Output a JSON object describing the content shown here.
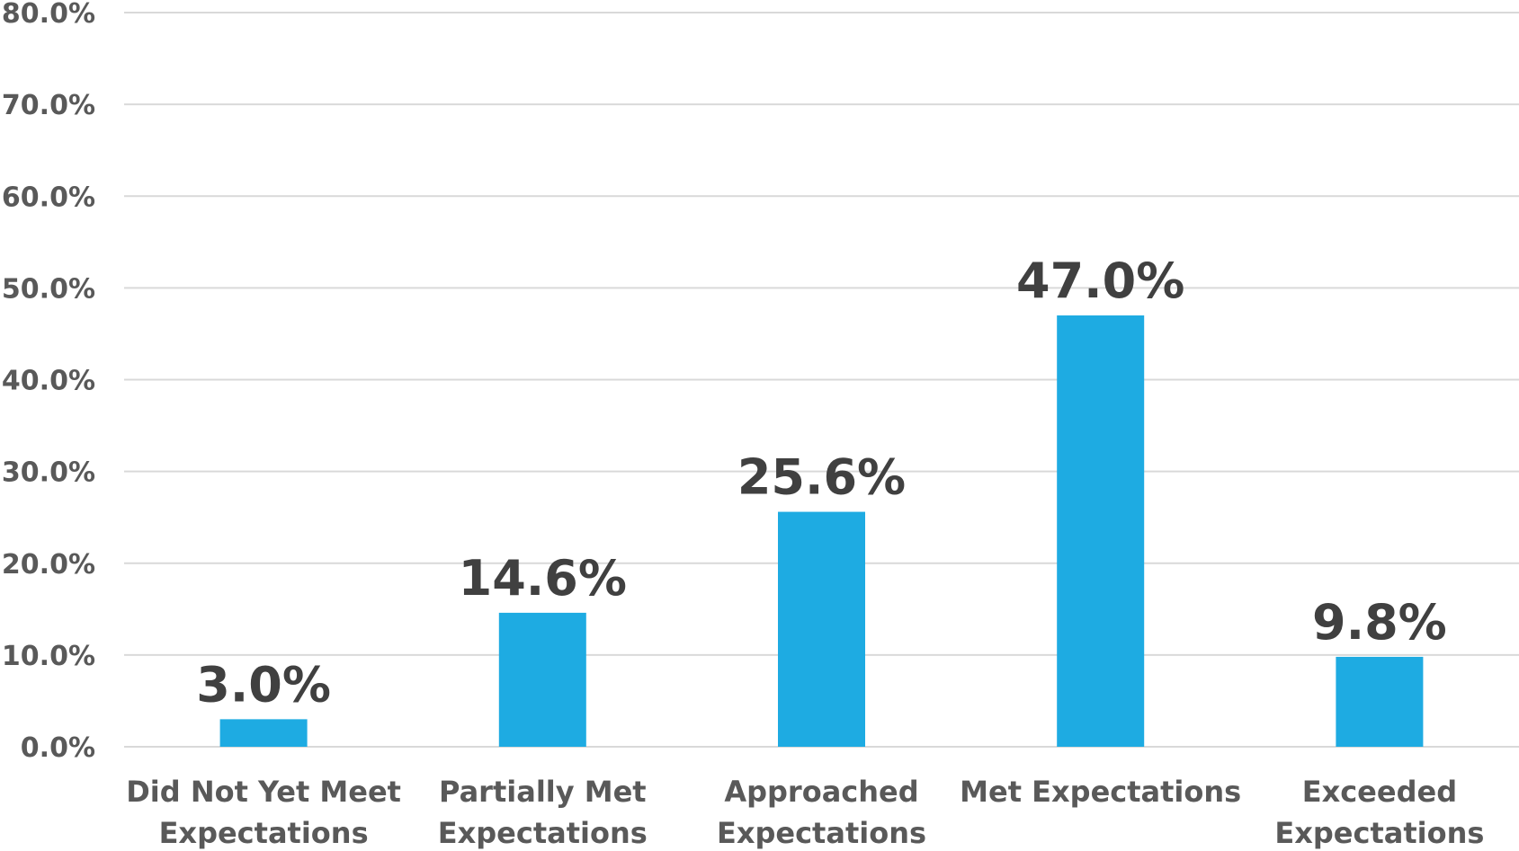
{
  "chart_data": {
    "type": "bar",
    "categories": [
      "Did Not Yet Meet Expectations",
      "Partially Met Expectations",
      "Approached Expectations",
      "Met Expectations",
      "Exceeded Expectations"
    ],
    "category_label_lines": [
      [
        "Did Not Yet Meet",
        "Expectations"
      ],
      [
        "Partially Met",
        "Expectations"
      ],
      [
        "Approached",
        "Expectations"
      ],
      [
        "Met Expectations"
      ],
      [
        "Exceeded",
        "Expectations"
      ]
    ],
    "values": [
      3.0,
      14.6,
      25.6,
      47.0,
      9.8
    ],
    "data_labels": [
      "3.0%",
      "14.6%",
      "25.6%",
      "47.0%",
      "9.8%"
    ],
    "y_ticks": [
      0,
      10,
      20,
      30,
      40,
      50,
      60,
      70,
      80
    ],
    "y_tick_labels": [
      "0.0%",
      "10.0%",
      "20.0%",
      "30.0%",
      "40.0%",
      "50.0%",
      "60.0%",
      "70.0%",
      "80.0%"
    ],
    "ylim": [
      0,
      80
    ],
    "grid": true,
    "legend": "none",
    "title": "",
    "xlabel": "",
    "ylabel": "",
    "colors": {
      "bar": "#1eabe2",
      "grid": "#d9d9d9",
      "tick_text": "#595959",
      "data_label_text": "#404040"
    }
  }
}
